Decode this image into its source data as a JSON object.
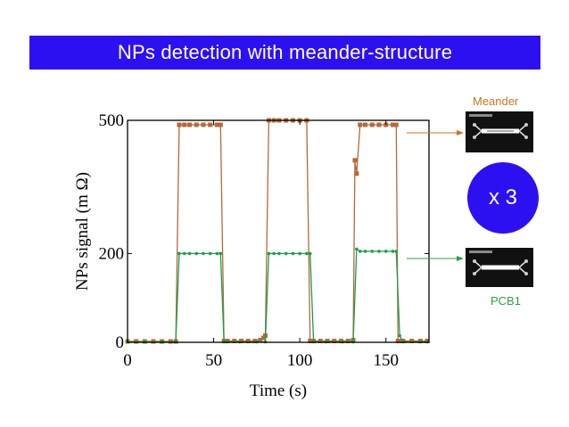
{
  "slide": {
    "title": "NPs detection with meander-structure",
    "multiplier_label": "x 3",
    "meander_label": "Meander",
    "pcb_label": "PCB1"
  },
  "colors": {
    "title_bg": "#2d10f2",
    "meander_series": "#b5693a",
    "pcb_series": "#1a9e4a",
    "meander_label": "#c9741f",
    "pcb_label": "#2aa04a",
    "circle": "#2d10f2"
  },
  "chart_data": {
    "type": "line",
    "xlabel": "Time (s)",
    "ylabel": "NPs signal (m Ω)",
    "xlim": [
      0,
      175
    ],
    "ylim": [
      0,
      500
    ],
    "xticks": [
      0,
      50,
      100,
      150
    ],
    "yticks": [
      0,
      200,
      500
    ],
    "series": [
      {
        "label_ref": "Meander",
        "color": "#b5693a",
        "marker": "square",
        "x": [
          0,
          5,
          10,
          15,
          20,
          25,
          28,
          30,
          33,
          36,
          40,
          44,
          48,
          52,
          54,
          56,
          58,
          62,
          66,
          70,
          74,
          77,
          79,
          80,
          82,
          85,
          88,
          92,
          96,
          100,
          104,
          106,
          108,
          112,
          116,
          120,
          124,
          128,
          131,
          132,
          133,
          135,
          138,
          142,
          146,
          150,
          154,
          156,
          157,
          158,
          160,
          165,
          170,
          174
        ],
        "y": [
          2,
          2,
          2,
          2,
          2,
          2,
          2,
          490,
          490,
          490,
          490,
          490,
          490,
          490,
          490,
          3,
          3,
          3,
          3,
          3,
          3,
          5,
          10,
          15,
          500,
          500,
          500,
          500,
          500,
          500,
          500,
          3,
          3,
          3,
          3,
          3,
          3,
          3,
          5,
          410,
          380,
          490,
          490,
          490,
          490,
          490,
          490,
          490,
          3,
          3,
          3,
          3,
          3,
          3
        ]
      },
      {
        "label_ref": "PCB1",
        "color": "#1a9e4a",
        "marker": "dot",
        "x": [
          0,
          10,
          20,
          28,
          30,
          33,
          36,
          40,
          44,
          48,
          52,
          54,
          56,
          58,
          65,
          75,
          80,
          82,
          85,
          88,
          92,
          96,
          100,
          104,
          106,
          108,
          115,
          125,
          131,
          133,
          135,
          138,
          142,
          146,
          150,
          154,
          156,
          158,
          160,
          170,
          174
        ],
        "y": [
          1,
          1,
          1,
          1,
          200,
          200,
          200,
          200,
          200,
          200,
          200,
          200,
          1,
          1,
          1,
          1,
          1,
          200,
          200,
          200,
          200,
          200,
          200,
          200,
          200,
          1,
          1,
          1,
          1,
          210,
          205,
          205,
          205,
          205,
          205,
          205,
          205,
          15,
          1,
          1,
          1
        ]
      }
    ]
  }
}
